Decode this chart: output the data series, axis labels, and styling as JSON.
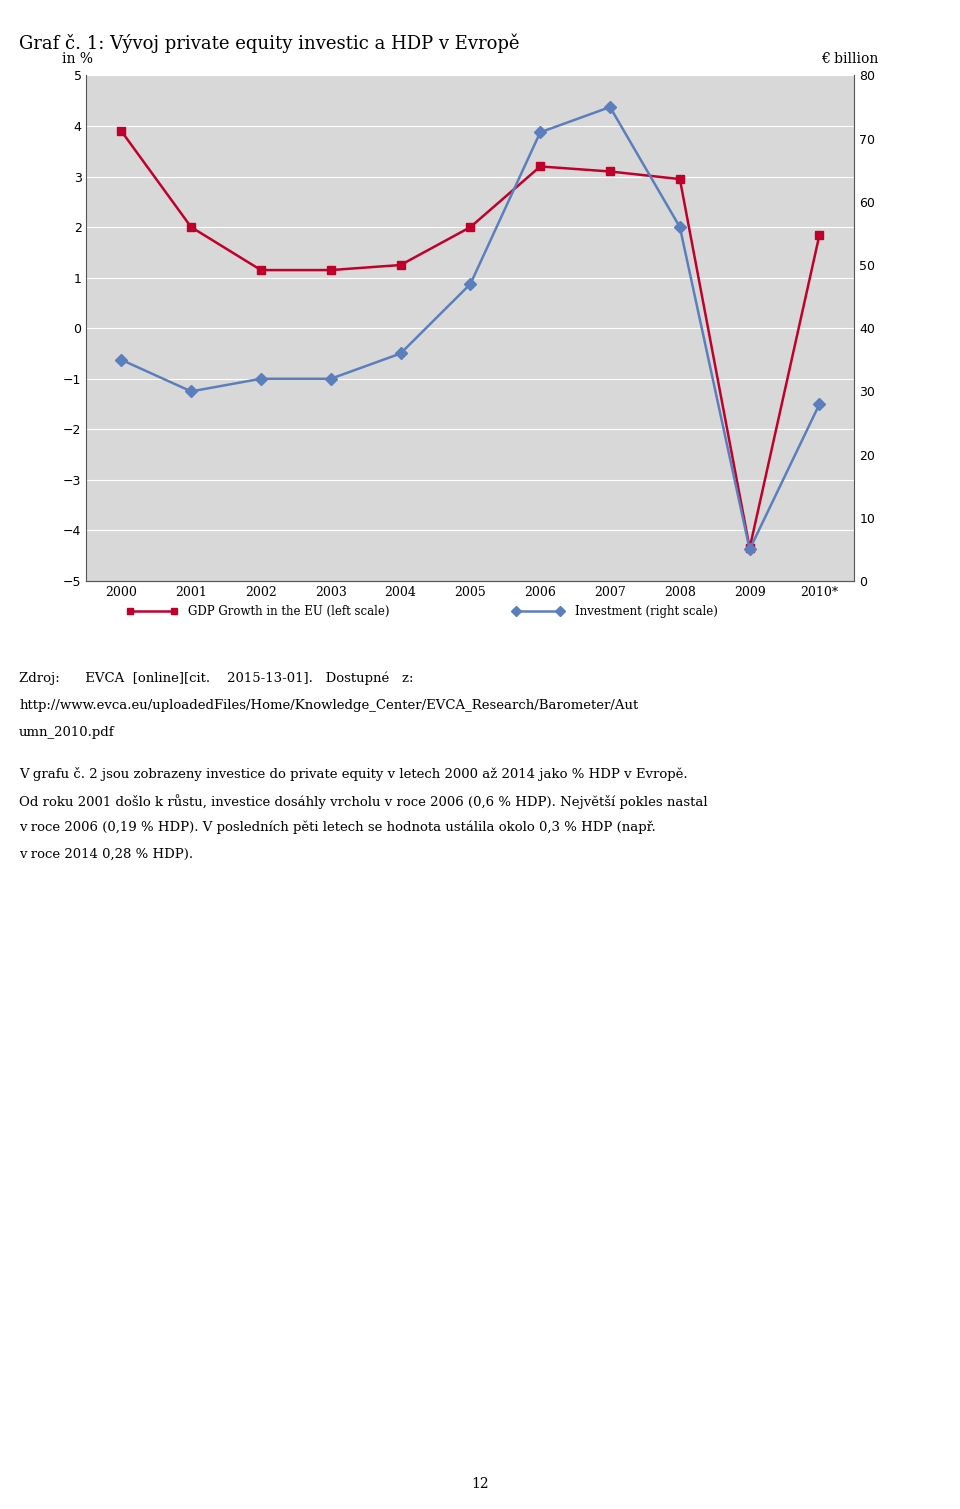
{
  "title": "Graf č. 1: Vývoj private equity investic a HDP v Evropě",
  "years": [
    "2000",
    "2001",
    "2002",
    "2003",
    "2004",
    "2005",
    "2006",
    "2007",
    "2008",
    "2009",
    "2010*"
  ],
  "gdp_growth": [
    3.9,
    2.0,
    1.15,
    1.15,
    1.25,
    2.0,
    3.2,
    3.1,
    2.95,
    -4.35,
    1.85
  ],
  "investment_bn": [
    35,
    30,
    32,
    32,
    36,
    47,
    71,
    75,
    56,
    5,
    28
  ],
  "gdp_color": "#c0002a",
  "invest_color": "#5b7fbc",
  "chart_bg": "#d8d8d8",
  "left_ylim": [
    -5,
    5
  ],
  "right_ylim": [
    0,
    80
  ],
  "left_ylabel": "in %",
  "right_ylabel": "€ billion",
  "left_yticks": [
    -5,
    -4,
    -3,
    -2,
    -1,
    0,
    1,
    2,
    3,
    4,
    5
  ],
  "right_yticks": [
    0,
    10,
    20,
    30,
    40,
    50,
    60,
    70,
    80
  ],
  "legend_gdp": "GDP Growth in the EU (left scale)",
  "legend_invest": "Investment (right scale)",
  "source_line1": "Zdroj:      EVCA  [online][cit.    2015-13-01].   Dostupné   z:",
  "source_line2": "http://www.evca.eu/uploadedFiles/Home/Knowledge_Center/EVCA_Research/Barometer/Aut",
  "source_line3": "umn_2010.pdf",
  "body_line1": "V grafu č. 2 jsou zobrazeny investice do private equity v letech 2000 až 2014 jako % HDP v Evropě.",
  "body_line2": "Od roku 2001 došlo k růstu, investice dosáhly vrcholu v roce 2006 (0,6 % HDP). Největší pokles nastal",
  "body_line3": "v roce 2006 (0,19 % HDP). V posledních pěti letech se hodnota ustálila okolo 0,3 % HDP (např.",
  "body_line4": "v roce 2014 0,28 % HDP).",
  "page_number": "12"
}
